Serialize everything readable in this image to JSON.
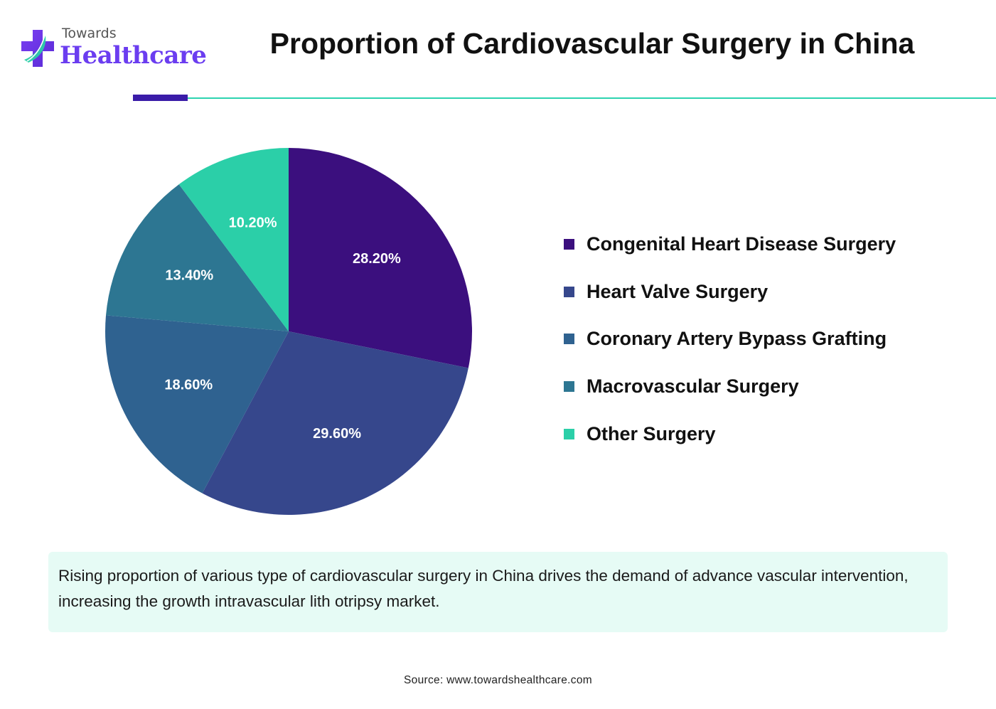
{
  "brand": {
    "line1": "Towards",
    "line2": "Healthcare"
  },
  "title": "Proportion of Cardiovascular Surgery in China",
  "chart_data": {
    "type": "pie",
    "title": "Proportion of Cardiovascular Surgery in China",
    "legend_position": "right",
    "start_angle": "top (12 o'clock), clockwise",
    "slices": [
      {
        "name": "Congenital Heart Disease Surgery",
        "value": 28.2,
        "label": "28.20%",
        "color": "#3b0f7e"
      },
      {
        "name": "Heart Valve Surgery",
        "value": 29.6,
        "label": "29.60%",
        "color": "#36478c"
      },
      {
        "name": "Coronary Artery Bypass Grafting",
        "value": 18.6,
        "label": "18.60%",
        "color": "#2f6290"
      },
      {
        "name": "Macrovascular Surgery",
        "value": 13.4,
        "label": "13.40%",
        "color": "#2d7692"
      },
      {
        "name": "Other Surgery",
        "value": 10.2,
        "label": "10.20%",
        "color": "#2bcfa8"
      }
    ]
  },
  "note": "Rising proportion of various type of cardiovascular surgery in China drives the demand of advance vascular intervention, increasing the growth intravascular lith otripsy market.",
  "source": "Source: www.towardshealthcare.com",
  "colors": {
    "accent_bar": "#3a1ca8",
    "accent_line": "#2dd4b0",
    "note_background": "#e6fbf5",
    "logo_text": "#6b3df0"
  }
}
